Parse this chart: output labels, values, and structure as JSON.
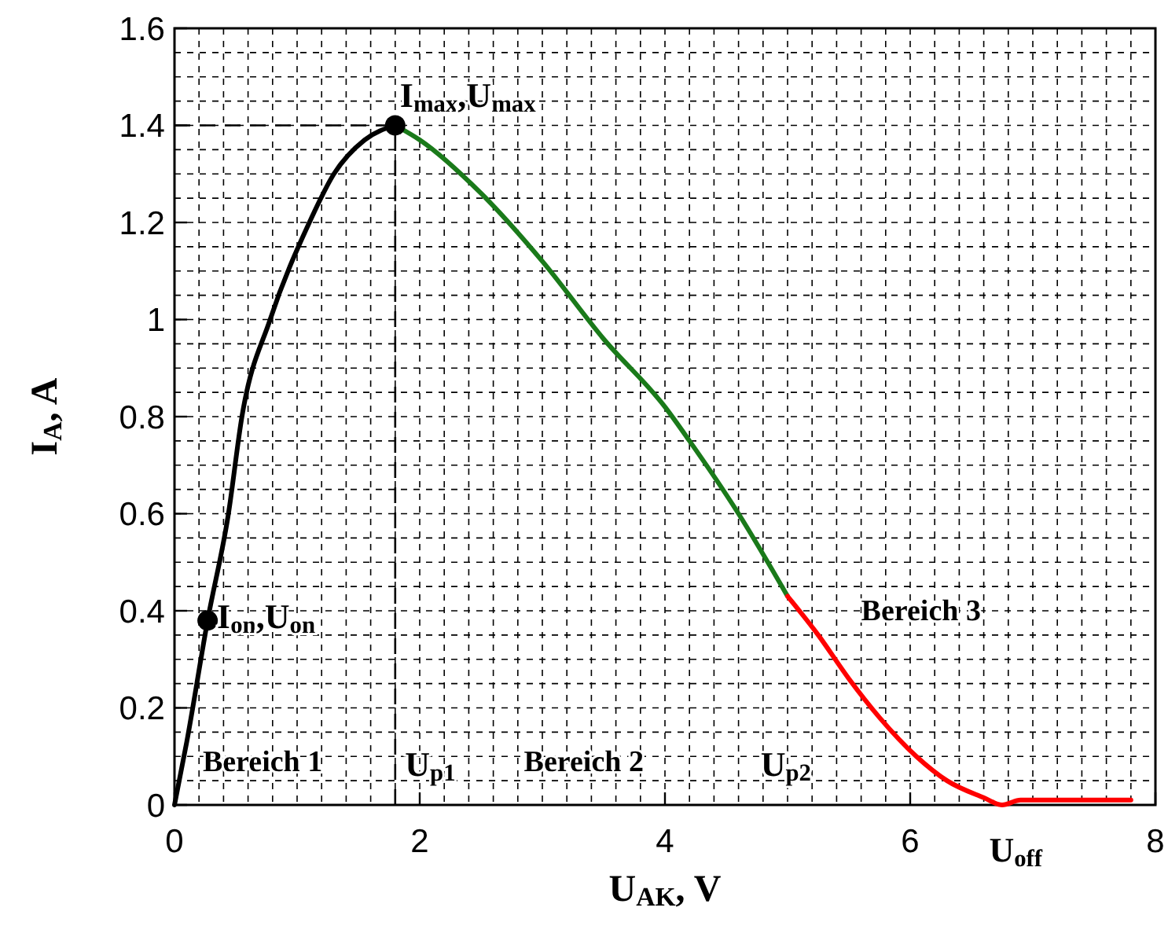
{
  "chart_data": {
    "type": "line",
    "xlabel": "U$_{AK}$, V",
    "ylabel": "I$_{A}$, A",
    "xlim": [
      0,
      8
    ],
    "xticks": [
      0,
      2,
      4,
      6,
      8
    ],
    "ylim": [
      0,
      1.6
    ],
    "yticks": [
      0,
      0.2,
      0.4,
      0.6,
      0.8,
      1,
      1.2,
      1.4,
      1.6
    ],
    "grid": true,
    "line_style": "solid",
    "series": [
      {
        "color": "#000000",
        "x": [
          0,
          0.1,
          0.27,
          0.44,
          0.55,
          0.78,
          1.1,
          1.3,
          1.55,
          1.8
        ],
        "values": [
          0,
          0.13,
          0.38,
          0.6,
          0.8,
          1.0,
          1.2,
          1.3,
          1.37,
          1.4
        ]
      },
      {
        "color": "#1a7a1a",
        "x": [
          1.8,
          2.0,
          2.5,
          3.0,
          3.5,
          4.0,
          4.2,
          4.6,
          5.0
        ],
        "values": [
          1.4,
          1.37,
          1.26,
          1.12,
          0.96,
          0.82,
          0.75,
          0.6,
          0.43
        ]
      },
      {
        "color": "#ff0000",
        "x": [
          5.0,
          5.25,
          5.5,
          5.75,
          6.05,
          6.3,
          6.6,
          6.75,
          6.9,
          7.8
        ],
        "values": [
          0.43,
          0.35,
          0.26,
          0.18,
          0.1,
          0.05,
          0.015,
          0,
          0.01,
          0.01
        ]
      },
      {
        "color": "#000000",
        "line_style": "dashed",
        "x": [
          1.8,
          1.8
        ],
        "values": [
          0,
          1.4
        ]
      },
      {
        "color": "#000000",
        "line_style": "dashed",
        "x": [
          0,
          1.8
        ],
        "values": [
          1.4,
          1.4
        ]
      },
      {
        "type": "scatter",
        "marker": "circle",
        "color": "#000000",
        "x": [
          0.27,
          1.8
        ],
        "values": [
          0.38,
          1.4
        ]
      }
    ],
    "annotations": [
      {
        "text": "I$_{max}$,U$_{max}$",
        "x": 1.8,
        "y": 1.4
      },
      {
        "text": "I$_{on}$,U$_{on}$",
        "x": 0.27,
        "y": 0.38
      },
      {
        "text": "U$_{off}$",
        "x": 6.9,
        "y": 0
      },
      "U$_{p1}$",
      "U$_{p2}$",
      "Bereich 1",
      "Bereich 2",
      "Bereich 3"
    ]
  }
}
